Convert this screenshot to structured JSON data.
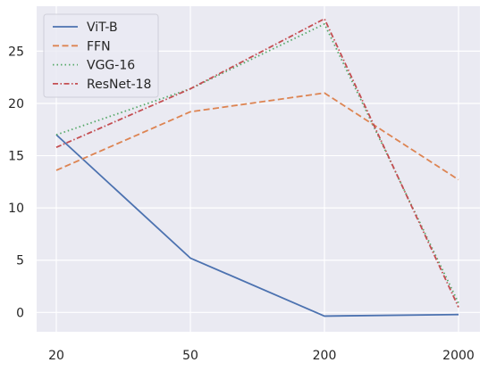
{
  "chart_data": {
    "type": "line",
    "title": "",
    "xlabel": "",
    "ylabel": "",
    "x": [
      "20",
      "50",
      "200",
      "2000"
    ],
    "ylim": [
      -1.85,
      29.3
    ],
    "yticks": [
      0,
      5,
      10,
      15,
      20,
      25
    ],
    "grid": true,
    "background": "#eaeaf2",
    "legend_position": "top-left",
    "series": [
      {
        "name": "ViT-B",
        "values": [
          17.0,
          5.2,
          -0.35,
          -0.2
        ],
        "color": "#4c72b0",
        "style": "solid"
      },
      {
        "name": "FFN",
        "values": [
          13.6,
          19.2,
          21.0,
          12.7
        ],
        "color": "#dd8452",
        "style": "dashed"
      },
      {
        "name": "VGG-16",
        "values": [
          17.0,
          21.4,
          27.6,
          0.9
        ],
        "color": "#55a868",
        "style": "dotted"
      },
      {
        "name": "ResNet-18",
        "values": [
          15.8,
          21.4,
          28.1,
          0.5
        ],
        "color": "#c44e52",
        "style": "dashdot"
      }
    ]
  }
}
